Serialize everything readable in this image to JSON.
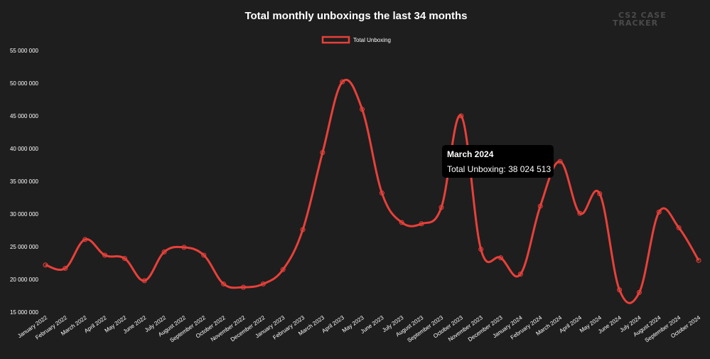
{
  "logo": {
    "line1": "CS2 CASE",
    "line2": "TRACKER"
  },
  "tooltip": {
    "title": "March 2024",
    "series_label": "Total Unboxing",
    "value_text": "38 024 513"
  },
  "chart_data": {
    "type": "line",
    "title": "Total monthly unboxings the last 34 months",
    "xlabel": "",
    "ylabel": "",
    "ylim": [
      15000000,
      55000000
    ],
    "yticks": [
      15000000,
      20000000,
      25000000,
      30000000,
      35000000,
      40000000,
      45000000,
      50000000,
      55000000
    ],
    "ytick_labels": [
      "15 000 000",
      "20 000 000",
      "25 000 000",
      "30 000 000",
      "35 000 000",
      "40 000 000",
      "45 000 000",
      "50 000 000",
      "55 000 000"
    ],
    "grid": false,
    "legend": "top-center",
    "categories": [
      "January 2022",
      "February 2022",
      "March 2022",
      "April 2022",
      "May 2022",
      "June 2022",
      "July 2022",
      "August 2022",
      "September 2022",
      "October 2022",
      "November 2022",
      "December 2022",
      "January 2023",
      "February 2023",
      "March 2023",
      "April 2023",
      "May 2023",
      "June 2023",
      "July 2023",
      "August 2023",
      "September 2023",
      "October 2023",
      "November 2023",
      "December 2023",
      "January 2024",
      "February 2024",
      "March 2024",
      "April 2024",
      "May 2024",
      "June 2024",
      "July 2024",
      "August 2024",
      "September 2024",
      "October 2024"
    ],
    "series": [
      {
        "name": "Total Unboxing",
        "color": "#e8403a",
        "values": [
          22200000,
          21700000,
          26100000,
          23700000,
          23200000,
          19800000,
          24200000,
          24900000,
          23700000,
          19300000,
          18800000,
          19300000,
          21500000,
          27600000,
          39400000,
          50200000,
          46000000,
          33200000,
          28700000,
          28500000,
          31000000,
          45000000,
          24600000,
          23300000,
          20800000,
          31200000,
          38024513,
          30100000,
          33100000,
          18400000,
          18000000,
          30300000,
          27900000,
          22900000
        ]
      }
    ]
  }
}
